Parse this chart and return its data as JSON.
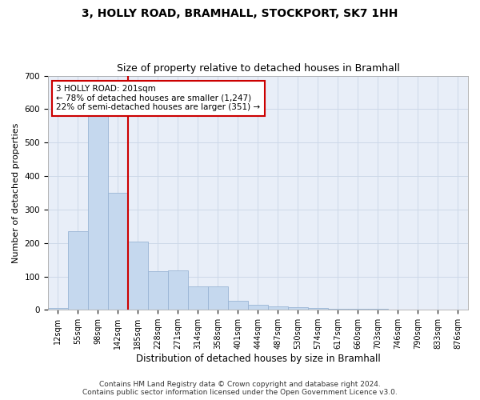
{
  "title": "3, HOLLY ROAD, BRAMHALL, STOCKPORT, SK7 1HH",
  "subtitle": "Size of property relative to detached houses in Bramhall",
  "xlabel": "Distribution of detached houses by size in Bramhall",
  "ylabel": "Number of detached properties",
  "categories": [
    "12sqm",
    "55sqm",
    "98sqm",
    "142sqm",
    "185sqm",
    "228sqm",
    "271sqm",
    "314sqm",
    "358sqm",
    "401sqm",
    "444sqm",
    "487sqm",
    "530sqm",
    "574sqm",
    "617sqm",
    "660sqm",
    "703sqm",
    "746sqm",
    "790sqm",
    "833sqm",
    "876sqm"
  ],
  "values": [
    5,
    235,
    580,
    350,
    205,
    115,
    118,
    70,
    70,
    27,
    15,
    10,
    7,
    5,
    4,
    3,
    3,
    2,
    1,
    1,
    0
  ],
  "bar_color": "#c5d8ee",
  "bar_edge_color": "#9ab5d5",
  "marker_label": "3 HOLLY ROAD: 201sqm",
  "annotation_line1": "← 78% of detached houses are smaller (1,247)",
  "annotation_line2": "22% of semi-detached houses are larger (351) →",
  "annotation_box_color": "#ffffff",
  "annotation_box_edge": "#cc0000",
  "vline_color": "#cc0000",
  "vline_x_idx": 4,
  "footer_line1": "Contains HM Land Registry data © Crown copyright and database right 2024.",
  "footer_line2": "Contains public sector information licensed under the Open Government Licence v3.0.",
  "ylim": [
    0,
    700
  ],
  "yticks": [
    0,
    100,
    200,
    300,
    400,
    500,
    600,
    700
  ],
  "grid_color": "#cdd8e8",
  "background_color": "#e8eef8",
  "title_fontsize": 10,
  "subtitle_fontsize": 9,
  "axis_fontsize": 8,
  "tick_fontsize": 7,
  "footer_fontsize": 6.5
}
